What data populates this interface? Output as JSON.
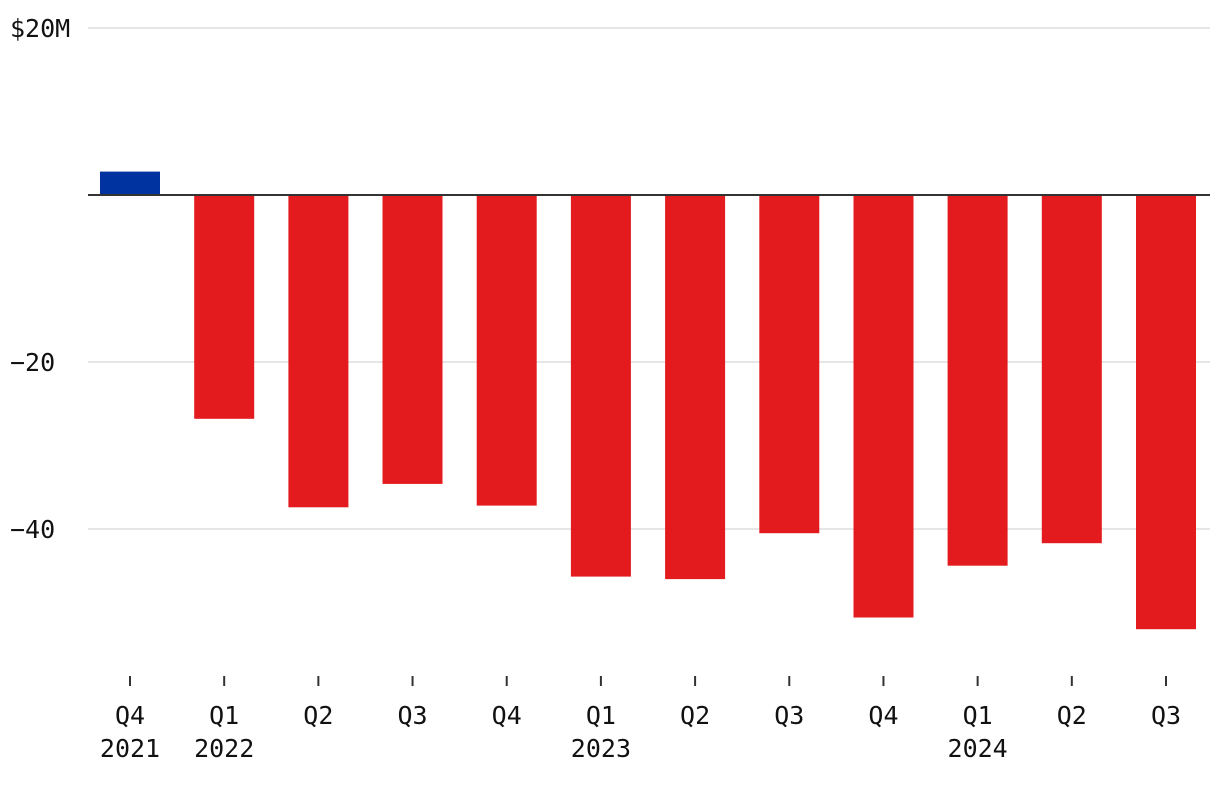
{
  "chart_data": {
    "type": "bar",
    "title": "",
    "xlabel": "",
    "ylabel": "",
    "ylim": [
      -58,
      20
    ],
    "yticks": [
      20,
      -20,
      -40
    ],
    "ytick_labels": [
      "$20M",
      "−20",
      "−40"
    ],
    "grid": true,
    "categories": [
      "Q4 2021",
      "Q1 2022",
      "Q2 2022",
      "Q3 2022",
      "Q4 2022",
      "Q1 2023",
      "Q2 2023",
      "Q3 2023",
      "Q4 2023",
      "Q1 2024",
      "Q2 2024",
      "Q3 2024"
    ],
    "quarter_labels": [
      "Q4",
      "Q1",
      "Q2",
      "Q3",
      "Q4",
      "Q1",
      "Q2",
      "Q3",
      "Q4",
      "Q1",
      "Q2",
      "Q3"
    ],
    "year_labels": [
      "2021",
      "2022",
      "",
      "",
      "",
      "2023",
      "",
      "",
      "",
      "2024",
      "",
      ""
    ],
    "values": [
      2.8,
      -26.8,
      -37.4,
      -34.6,
      -37.2,
      -45.7,
      -46.0,
      -40.5,
      -50.6,
      -44.4,
      -41.7,
      -52.0
    ],
    "colors": {
      "positive": "#0033a0",
      "negative": "#e31b1e"
    }
  }
}
